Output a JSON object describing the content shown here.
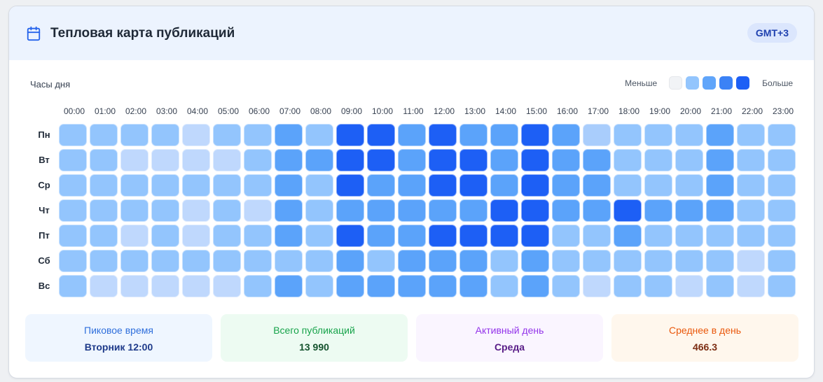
{
  "header": {
    "title": "Тепловая карта публикаций",
    "timezone": "GMT+3",
    "icon": "calendar-icon"
  },
  "axis_caption": "Часы дня",
  "legend": {
    "less": "Меньше",
    "more": "Больше",
    "colors": [
      "#f1f3f6",
      "#93c5fd",
      "#60a5fa",
      "#3b82f6",
      "#1d5ff5"
    ]
  },
  "chart_data": {
    "type": "heatmap",
    "title": "Тепловая карта публикаций",
    "xlabel": "Часы дня",
    "x": [
      "00:00",
      "01:00",
      "02:00",
      "03:00",
      "04:00",
      "05:00",
      "06:00",
      "07:00",
      "08:00",
      "09:00",
      "10:00",
      "11:00",
      "12:00",
      "13:00",
      "14:00",
      "15:00",
      "16:00",
      "17:00",
      "18:00",
      "19:00",
      "20:00",
      "21:00",
      "22:00",
      "23:00"
    ],
    "y": [
      "Пн",
      "Вт",
      "Ср",
      "Чт",
      "Пт",
      "Сб",
      "Вс"
    ],
    "scale": "intensity level 1 (least) to 7 (most)",
    "values": [
      [
        3,
        3,
        3,
        3,
        1,
        3,
        3,
        5,
        3,
        7,
        7,
        5,
        7,
        5,
        5,
        7,
        5,
        2,
        3,
        3,
        3,
        5,
        3,
        3
      ],
      [
        3,
        3,
        1,
        1,
        1,
        1,
        3,
        5,
        5,
        7,
        7,
        5,
        7,
        7,
        5,
        7,
        5,
        5,
        3,
        3,
        3,
        5,
        3,
        3
      ],
      [
        3,
        3,
        3,
        3,
        3,
        3,
        3,
        5,
        3,
        7,
        5,
        5,
        7,
        7,
        5,
        7,
        5,
        5,
        3,
        3,
        3,
        5,
        3,
        3
      ],
      [
        3,
        3,
        3,
        3,
        1,
        3,
        1,
        5,
        3,
        5,
        5,
        5,
        5,
        5,
        7,
        7,
        5,
        5,
        7,
        5,
        5,
        5,
        3,
        3
      ],
      [
        3,
        3,
        1,
        3,
        1,
        3,
        3,
        5,
        3,
        7,
        5,
        5,
        7,
        7,
        7,
        7,
        3,
        3,
        5,
        3,
        3,
        3,
        3,
        3
      ],
      [
        3,
        3,
        3,
        3,
        3,
        3,
        3,
        3,
        3,
        5,
        3,
        5,
        5,
        5,
        3,
        5,
        3,
        3,
        3,
        3,
        3,
        3,
        1,
        3
      ],
      [
        3,
        1,
        1,
        1,
        1,
        1,
        3,
        5,
        3,
        5,
        5,
        5,
        5,
        5,
        3,
        5,
        3,
        1,
        3,
        3,
        1,
        3,
        1,
        3
      ]
    ]
  },
  "stats": [
    {
      "label": "Пиковое время",
      "value": "Вторник 12:00",
      "bg": "#eff6ff",
      "label_color": "#2f6fdc",
      "value_color": "#1e3a8a"
    },
    {
      "label": "Всего публикаций",
      "value": "13 990",
      "bg": "#edfbf2",
      "label_color": "#16a34a",
      "value_color": "#14532d"
    },
    {
      "label": "Активный день",
      "value": "Среда",
      "bg": "#faf5ff",
      "label_color": "#9333ea",
      "value_color": "#581c87"
    },
    {
      "label": "Среднее в день",
      "value": "466.3",
      "bg": "#fff7ed",
      "label_color": "#ea580c",
      "value_color": "#7c2d12"
    }
  ]
}
